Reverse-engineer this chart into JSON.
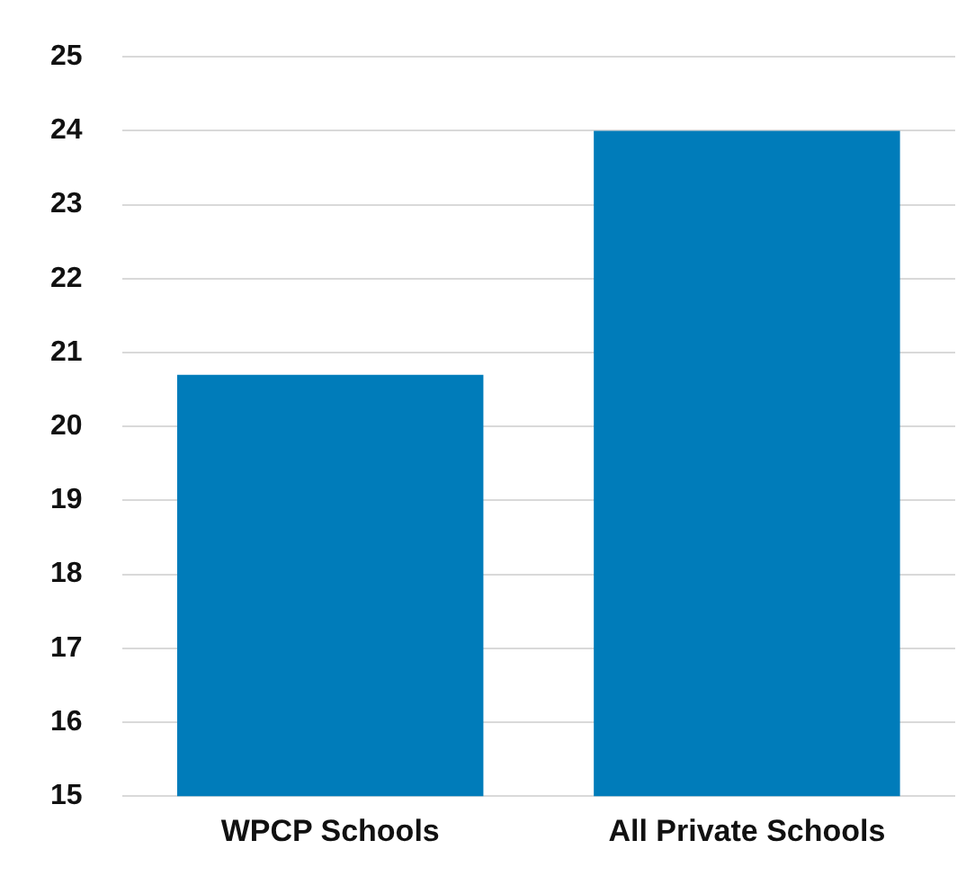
{
  "chart_data": {
    "type": "bar",
    "categories": [
      "WPCP Schools",
      "All Private Schools"
    ],
    "values": [
      20.7,
      24.0
    ],
    "color": "#007cba",
    "ylim": [
      15,
      25
    ],
    "yticks": [
      15,
      16,
      17,
      18,
      19,
      20,
      21,
      22,
      23,
      24,
      25
    ],
    "grid": "y",
    "legend": false
  }
}
